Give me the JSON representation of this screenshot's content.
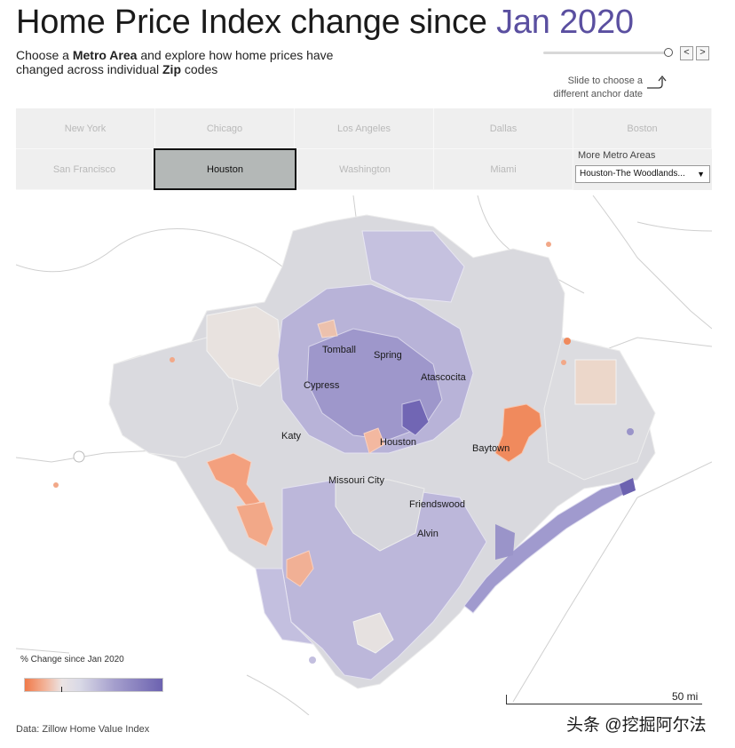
{
  "header": {
    "title_prefix": "Home Price Index change since ",
    "title_date": "Jan 2020",
    "subtitle_parts": [
      "Choose a ",
      "Metro Area",
      " and explore how home prices have changed across individual ",
      "Zip",
      " codes"
    ]
  },
  "date_slider": {
    "hint": "Slide to choose a different anchor date",
    "prev_label": "<",
    "next_label": ">",
    "level": 1.0
  },
  "metro_areas": {
    "row1": [
      "New York",
      "Chicago",
      "Los Angeles",
      "Dallas",
      "Boston"
    ],
    "row2": [
      "San Francisco",
      "Houston",
      "Washington",
      "Miami"
    ],
    "selected": "Houston",
    "more_label": "More Metro Areas",
    "more_value": "Houston-The Woodlands..."
  },
  "map": {
    "cities": [
      "Tomball",
      "Spring",
      "Cypress",
      "Atascocita",
      "Katy",
      "Houston",
      "Baytown",
      "Missouri City",
      "Friendswood",
      "Alvin"
    ],
    "colors": {
      "negative": "#f07a4a",
      "neutral": "#e4e4e4",
      "positive": "#6c62b0"
    }
  },
  "legend": {
    "title": "% Change since Jan 2020"
  },
  "scale": {
    "label": "50 mi"
  },
  "source": "Data: Zillow Home Value Index",
  "watermark": "头条 @挖掘阿尔法"
}
